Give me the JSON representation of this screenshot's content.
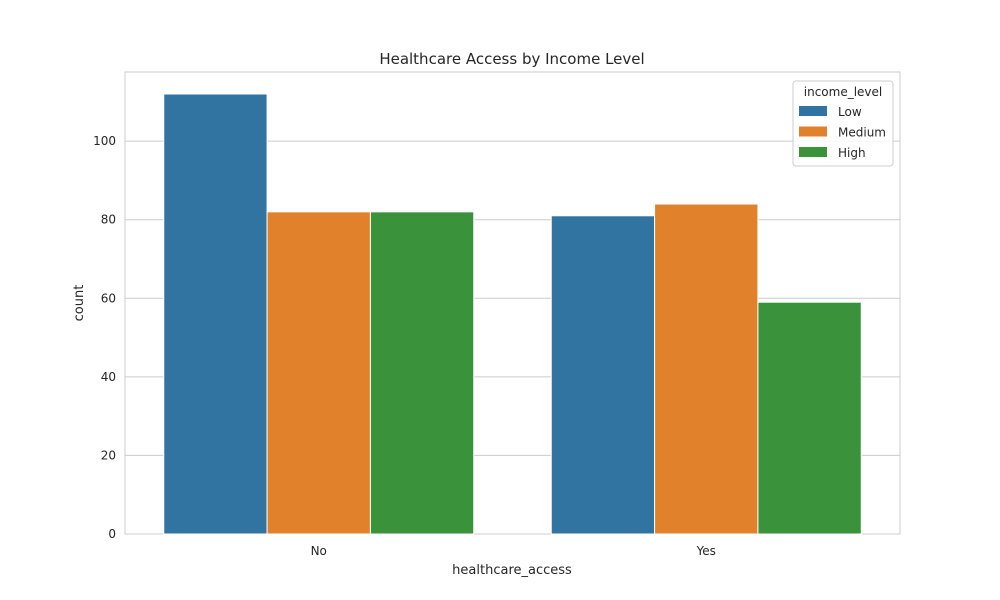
{
  "chart_data": {
    "type": "bar",
    "title": "Healthcare Access by Income Level",
    "xlabel": "healthcare_access",
    "ylabel": "count",
    "categories": [
      "No",
      "Yes"
    ],
    "series": [
      {
        "name": "Low",
        "values": [
          112,
          81
        ],
        "color": "#3274a1"
      },
      {
        "name": "Medium",
        "values": [
          82,
          84
        ],
        "color": "#e1812c"
      },
      {
        "name": "High",
        "values": [
          82,
          59
        ],
        "color": "#3a923a"
      }
    ],
    "ylim": [
      0,
      117.6
    ],
    "yticks": [
      0,
      20,
      40,
      60,
      80,
      100
    ],
    "grid": true,
    "legend": {
      "title": "income_level",
      "placement": "top-right"
    }
  }
}
